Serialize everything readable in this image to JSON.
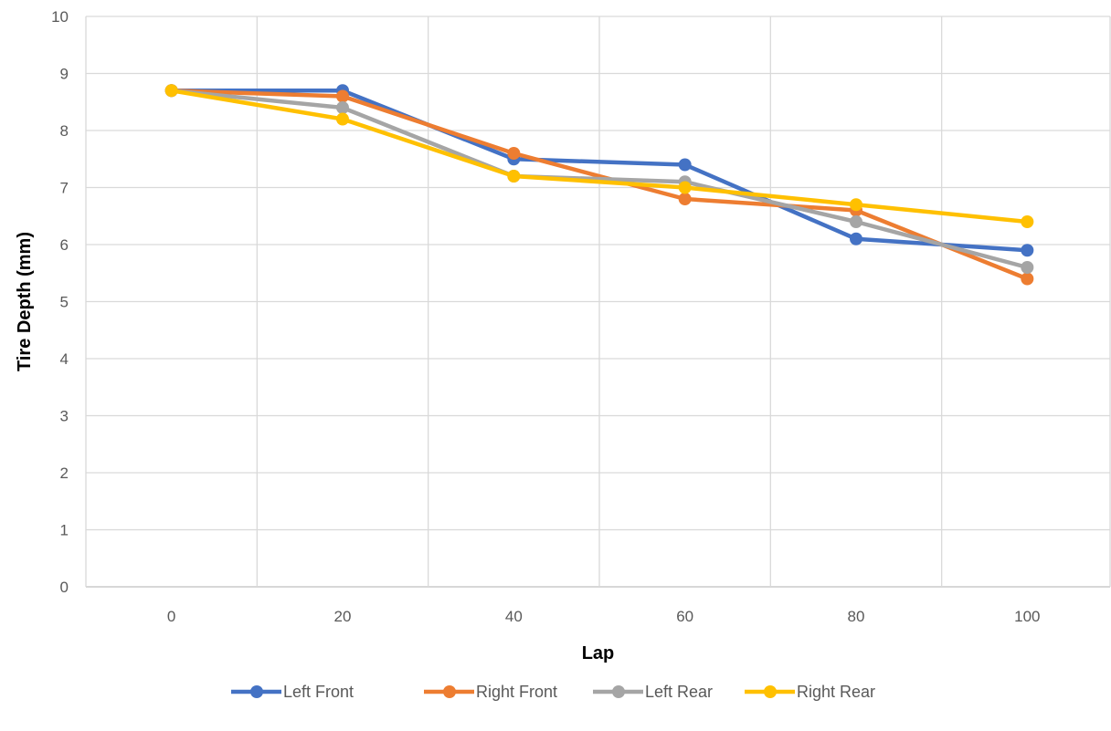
{
  "chart_data": {
    "type": "line",
    "title": "",
    "xlabel": "Lap",
    "ylabel": "Tire Depth (mm)",
    "x": [
      0,
      20,
      40,
      60,
      80,
      100
    ],
    "x_tick_labels": [
      "0",
      "20",
      "40",
      "60",
      "80",
      "100"
    ],
    "y_tick_labels": [
      "0",
      "1",
      "2",
      "3",
      "4",
      "5",
      "6",
      "7",
      "8",
      "9",
      "10"
    ],
    "xlim": [
      -10,
      110
    ],
    "ylim": [
      0,
      10
    ],
    "grid": true,
    "legend_position": "bottom",
    "series": [
      {
        "name": "Left Front",
        "color": "#4472C4",
        "values": [
          8.7,
          8.7,
          7.5,
          7.4,
          6.1,
          5.9
        ]
      },
      {
        "name": "Right Front",
        "color": "#ED7D31",
        "values": [
          8.7,
          8.6,
          7.6,
          6.8,
          6.6,
          5.4
        ]
      },
      {
        "name": "Left Rear",
        "color": "#A5A5A5",
        "values": [
          8.7,
          8.4,
          7.2,
          7.1,
          6.4,
          5.6
        ]
      },
      {
        "name": "Right Rear",
        "color": "#FFC000",
        "values": [
          8.7,
          8.2,
          7.2,
          7.0,
          6.7,
          6.4
        ]
      }
    ]
  }
}
